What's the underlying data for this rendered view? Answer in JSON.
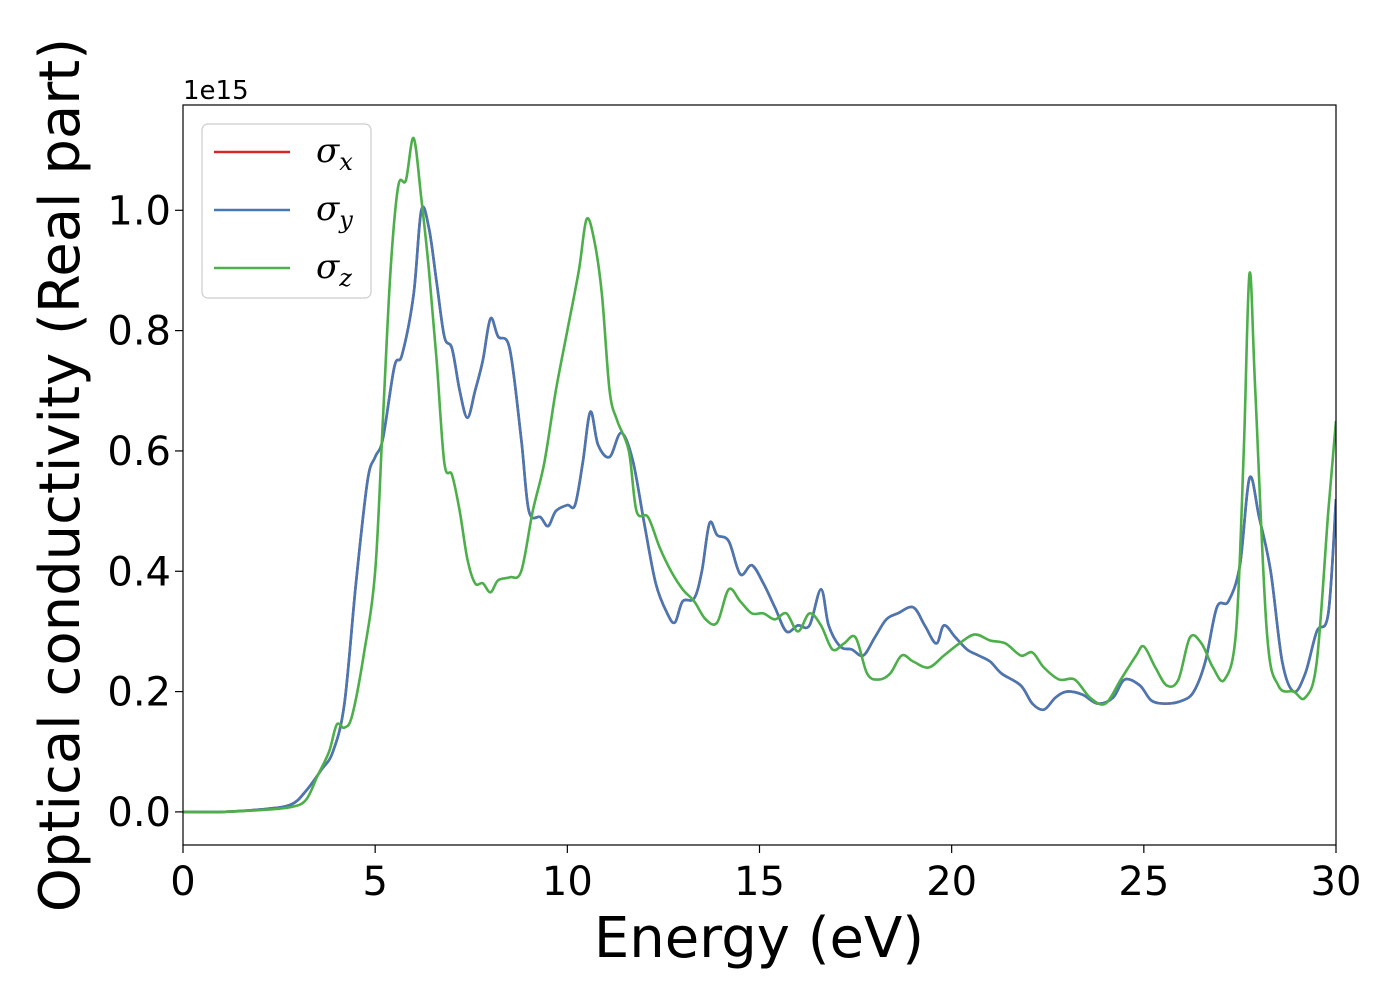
{
  "chart_data": {
    "type": "line",
    "xlabel": "Energy (eV)",
    "ylabel": "Optical conductivity (Real part)",
    "y_offset_label": "1e15",
    "xlim": [
      0,
      30
    ],
    "ylim": [
      -0.055,
      1.175
    ],
    "x_ticks": [
      0,
      5,
      10,
      15,
      20,
      25,
      30
    ],
    "x_tick_labels": [
      "0",
      "5",
      "10",
      "15",
      "20",
      "25",
      "30"
    ],
    "y_ticks": [
      0.0,
      0.2,
      0.4,
      0.6,
      0.8,
      1.0
    ],
    "y_tick_labels": [
      "0.0",
      "0.2",
      "0.4",
      "0.6",
      "0.8",
      "1.0"
    ],
    "grid": false,
    "legend_position": "upper-left",
    "series": [
      {
        "name": "σx",
        "label_base": "σ",
        "label_sub": "x",
        "color": "#d62728",
        "points": [
          [
            0,
            0
          ],
          [
            1,
            0
          ],
          [
            2,
            0.004
          ],
          [
            2.8,
            0.012
          ],
          [
            3.2,
            0.035
          ],
          [
            3.6,
            0.07
          ],
          [
            3.9,
            0.1
          ],
          [
            4.2,
            0.18
          ],
          [
            4.5,
            0.38
          ],
          [
            4.8,
            0.55
          ],
          [
            5.0,
            0.59
          ],
          [
            5.2,
            0.62
          ],
          [
            5.5,
            0.74
          ],
          [
            5.7,
            0.76
          ],
          [
            6.0,
            0.86
          ],
          [
            6.2,
            1.0
          ],
          [
            6.4,
            0.97
          ],
          [
            6.6,
            0.88
          ],
          [
            6.8,
            0.79
          ],
          [
            7.0,
            0.77
          ],
          [
            7.2,
            0.7
          ],
          [
            7.4,
            0.655
          ],
          [
            7.6,
            0.7
          ],
          [
            7.8,
            0.75
          ],
          [
            8.0,
            0.82
          ],
          [
            8.2,
            0.79
          ],
          [
            8.5,
            0.77
          ],
          [
            8.8,
            0.62
          ],
          [
            9.0,
            0.5
          ],
          [
            9.3,
            0.49
          ],
          [
            9.5,
            0.475
          ],
          [
            9.7,
            0.5
          ],
          [
            10.0,
            0.51
          ],
          [
            10.2,
            0.51
          ],
          [
            10.4,
            0.58
          ],
          [
            10.6,
            0.665
          ],
          [
            10.8,
            0.61
          ],
          [
            11.1,
            0.59
          ],
          [
            11.4,
            0.63
          ],
          [
            11.7,
            0.585
          ],
          [
            12.0,
            0.48
          ],
          [
            12.3,
            0.38
          ],
          [
            12.6,
            0.33
          ],
          [
            12.8,
            0.315
          ],
          [
            13.0,
            0.35
          ],
          [
            13.3,
            0.355
          ],
          [
            13.5,
            0.4
          ],
          [
            13.7,
            0.48
          ],
          [
            13.9,
            0.46
          ],
          [
            14.2,
            0.45
          ],
          [
            14.5,
            0.395
          ],
          [
            14.8,
            0.41
          ],
          [
            15.1,
            0.38
          ],
          [
            15.4,
            0.34
          ],
          [
            15.7,
            0.3
          ],
          [
            16.0,
            0.31
          ],
          [
            16.3,
            0.31
          ],
          [
            16.6,
            0.37
          ],
          [
            16.8,
            0.31
          ],
          [
            17.1,
            0.275
          ],
          [
            17.4,
            0.27
          ],
          [
            17.7,
            0.26
          ],
          [
            18.0,
            0.29
          ],
          [
            18.3,
            0.32
          ],
          [
            18.6,
            0.33
          ],
          [
            19.0,
            0.34
          ],
          [
            19.3,
            0.31
          ],
          [
            19.6,
            0.28
          ],
          [
            19.8,
            0.31
          ],
          [
            20.1,
            0.29
          ],
          [
            20.4,
            0.27
          ],
          [
            20.7,
            0.26
          ],
          [
            21.0,
            0.25
          ],
          [
            21.3,
            0.23
          ],
          [
            21.8,
            0.21
          ],
          [
            22.1,
            0.18
          ],
          [
            22.4,
            0.17
          ],
          [
            22.7,
            0.19
          ],
          [
            23.0,
            0.2
          ],
          [
            23.4,
            0.195
          ],
          [
            23.8,
            0.18
          ],
          [
            24.2,
            0.19
          ],
          [
            24.5,
            0.22
          ],
          [
            24.9,
            0.21
          ],
          [
            25.2,
            0.185
          ],
          [
            25.6,
            0.18
          ],
          [
            26.0,
            0.185
          ],
          [
            26.3,
            0.2
          ],
          [
            26.6,
            0.25
          ],
          [
            26.9,
            0.34
          ],
          [
            27.2,
            0.35
          ],
          [
            27.5,
            0.41
          ],
          [
            27.75,
            0.555
          ],
          [
            28.0,
            0.49
          ],
          [
            28.3,
            0.4
          ],
          [
            28.6,
            0.25
          ],
          [
            28.9,
            0.2
          ],
          [
            29.2,
            0.23
          ],
          [
            29.5,
            0.3
          ],
          [
            29.8,
            0.33
          ],
          [
            30.0,
            0.52
          ]
        ]
      },
      {
        "name": "σy",
        "label_base": "σ",
        "label_sub": "y",
        "color": "#4878b4",
        "points": [
          [
            0,
            0
          ],
          [
            1,
            0
          ],
          [
            2,
            0.004
          ],
          [
            2.8,
            0.012
          ],
          [
            3.2,
            0.035
          ],
          [
            3.6,
            0.07
          ],
          [
            3.9,
            0.1
          ],
          [
            4.2,
            0.18
          ],
          [
            4.5,
            0.38
          ],
          [
            4.8,
            0.55
          ],
          [
            5.0,
            0.59
          ],
          [
            5.2,
            0.62
          ],
          [
            5.5,
            0.74
          ],
          [
            5.7,
            0.76
          ],
          [
            6.0,
            0.86
          ],
          [
            6.2,
            1.0
          ],
          [
            6.4,
            0.97
          ],
          [
            6.6,
            0.88
          ],
          [
            6.8,
            0.79
          ],
          [
            7.0,
            0.77
          ],
          [
            7.2,
            0.7
          ],
          [
            7.4,
            0.655
          ],
          [
            7.6,
            0.7
          ],
          [
            7.8,
            0.75
          ],
          [
            8.0,
            0.82
          ],
          [
            8.2,
            0.79
          ],
          [
            8.5,
            0.77
          ],
          [
            8.8,
            0.62
          ],
          [
            9.0,
            0.5
          ],
          [
            9.3,
            0.49
          ],
          [
            9.5,
            0.475
          ],
          [
            9.7,
            0.5
          ],
          [
            10.0,
            0.51
          ],
          [
            10.2,
            0.51
          ],
          [
            10.4,
            0.58
          ],
          [
            10.6,
            0.665
          ],
          [
            10.8,
            0.61
          ],
          [
            11.1,
            0.59
          ],
          [
            11.4,
            0.63
          ],
          [
            11.7,
            0.585
          ],
          [
            12.0,
            0.48
          ],
          [
            12.3,
            0.38
          ],
          [
            12.6,
            0.33
          ],
          [
            12.8,
            0.315
          ],
          [
            13.0,
            0.35
          ],
          [
            13.3,
            0.355
          ],
          [
            13.5,
            0.4
          ],
          [
            13.7,
            0.48
          ],
          [
            13.9,
            0.46
          ],
          [
            14.2,
            0.45
          ],
          [
            14.5,
            0.395
          ],
          [
            14.8,
            0.41
          ],
          [
            15.1,
            0.38
          ],
          [
            15.4,
            0.34
          ],
          [
            15.7,
            0.3
          ],
          [
            16.0,
            0.31
          ],
          [
            16.3,
            0.31
          ],
          [
            16.6,
            0.37
          ],
          [
            16.8,
            0.31
          ],
          [
            17.1,
            0.275
          ],
          [
            17.4,
            0.27
          ],
          [
            17.7,
            0.26
          ],
          [
            18.0,
            0.29
          ],
          [
            18.3,
            0.32
          ],
          [
            18.6,
            0.33
          ],
          [
            19.0,
            0.34
          ],
          [
            19.3,
            0.31
          ],
          [
            19.6,
            0.28
          ],
          [
            19.8,
            0.31
          ],
          [
            20.1,
            0.29
          ],
          [
            20.4,
            0.27
          ],
          [
            20.7,
            0.26
          ],
          [
            21.0,
            0.25
          ],
          [
            21.3,
            0.23
          ],
          [
            21.8,
            0.21
          ],
          [
            22.1,
            0.18
          ],
          [
            22.4,
            0.17
          ],
          [
            22.7,
            0.19
          ],
          [
            23.0,
            0.2
          ],
          [
            23.4,
            0.195
          ],
          [
            23.8,
            0.18
          ],
          [
            24.2,
            0.19
          ],
          [
            24.5,
            0.22
          ],
          [
            24.9,
            0.21
          ],
          [
            25.2,
            0.185
          ],
          [
            25.6,
            0.18
          ],
          [
            26.0,
            0.185
          ],
          [
            26.3,
            0.2
          ],
          [
            26.6,
            0.25
          ],
          [
            26.9,
            0.34
          ],
          [
            27.2,
            0.35
          ],
          [
            27.5,
            0.41
          ],
          [
            27.75,
            0.555
          ],
          [
            28.0,
            0.49
          ],
          [
            28.3,
            0.4
          ],
          [
            28.6,
            0.25
          ],
          [
            28.9,
            0.2
          ],
          [
            29.2,
            0.23
          ],
          [
            29.5,
            0.3
          ],
          [
            29.8,
            0.33
          ],
          [
            30.0,
            0.52
          ]
        ]
      },
      {
        "name": "σz",
        "label_base": "σ",
        "label_sub": "z",
        "color": "#4daf4a",
        "points": [
          [
            0,
            0
          ],
          [
            1,
            0
          ],
          [
            2,
            0.003
          ],
          [
            2.8,
            0.008
          ],
          [
            3.2,
            0.02
          ],
          [
            3.5,
            0.06
          ],
          [
            3.8,
            0.1
          ],
          [
            4.0,
            0.145
          ],
          [
            4.2,
            0.14
          ],
          [
            4.4,
            0.16
          ],
          [
            4.7,
            0.26
          ],
          [
            5.0,
            0.4
          ],
          [
            5.2,
            0.65
          ],
          [
            5.4,
            0.9
          ],
          [
            5.6,
            1.04
          ],
          [
            5.8,
            1.05
          ],
          [
            6.0,
            1.12
          ],
          [
            6.2,
            1.02
          ],
          [
            6.4,
            0.9
          ],
          [
            6.6,
            0.75
          ],
          [
            6.8,
            0.58
          ],
          [
            7.0,
            0.56
          ],
          [
            7.2,
            0.5
          ],
          [
            7.4,
            0.42
          ],
          [
            7.6,
            0.38
          ],
          [
            7.8,
            0.38
          ],
          [
            8.0,
            0.365
          ],
          [
            8.2,
            0.385
          ],
          [
            8.5,
            0.39
          ],
          [
            8.8,
            0.4
          ],
          [
            9.1,
            0.5
          ],
          [
            9.4,
            0.58
          ],
          [
            9.7,
            0.7
          ],
          [
            10.0,
            0.8
          ],
          [
            10.3,
            0.9
          ],
          [
            10.5,
            0.985
          ],
          [
            10.7,
            0.95
          ],
          [
            10.9,
            0.86
          ],
          [
            11.1,
            0.7
          ],
          [
            11.3,
            0.65
          ],
          [
            11.6,
            0.6
          ],
          [
            11.8,
            0.5
          ],
          [
            12.1,
            0.49
          ],
          [
            12.4,
            0.44
          ],
          [
            12.7,
            0.4
          ],
          [
            13.0,
            0.37
          ],
          [
            13.3,
            0.35
          ],
          [
            13.6,
            0.32
          ],
          [
            13.9,
            0.315
          ],
          [
            14.2,
            0.37
          ],
          [
            14.5,
            0.35
          ],
          [
            14.8,
            0.33
          ],
          [
            15.1,
            0.33
          ],
          [
            15.4,
            0.32
          ],
          [
            15.7,
            0.33
          ],
          [
            16.0,
            0.3
          ],
          [
            16.3,
            0.33
          ],
          [
            16.6,
            0.31
          ],
          [
            16.9,
            0.27
          ],
          [
            17.2,
            0.28
          ],
          [
            17.5,
            0.29
          ],
          [
            17.8,
            0.23
          ],
          [
            18.1,
            0.22
          ],
          [
            18.4,
            0.23
          ],
          [
            18.7,
            0.26
          ],
          [
            19.0,
            0.25
          ],
          [
            19.4,
            0.24
          ],
          [
            19.8,
            0.26
          ],
          [
            20.2,
            0.28
          ],
          [
            20.6,
            0.295
          ],
          [
            21.0,
            0.285
          ],
          [
            21.4,
            0.28
          ],
          [
            21.8,
            0.26
          ],
          [
            22.1,
            0.265
          ],
          [
            22.4,
            0.24
          ],
          [
            22.8,
            0.22
          ],
          [
            23.2,
            0.22
          ],
          [
            23.6,
            0.19
          ],
          [
            24.0,
            0.18
          ],
          [
            24.4,
            0.22
          ],
          [
            24.8,
            0.26
          ],
          [
            25.0,
            0.275
          ],
          [
            25.3,
            0.24
          ],
          [
            25.6,
            0.21
          ],
          [
            25.9,
            0.22
          ],
          [
            26.2,
            0.29
          ],
          [
            26.5,
            0.28
          ],
          [
            26.8,
            0.24
          ],
          [
            27.1,
            0.22
          ],
          [
            27.4,
            0.3
          ],
          [
            27.6,
            0.6
          ],
          [
            27.75,
            0.895
          ],
          [
            27.9,
            0.7
          ],
          [
            28.2,
            0.3
          ],
          [
            28.5,
            0.21
          ],
          [
            28.9,
            0.2
          ],
          [
            29.2,
            0.19
          ],
          [
            29.5,
            0.25
          ],
          [
            29.8,
            0.5
          ],
          [
            30.0,
            0.65
          ]
        ]
      }
    ]
  }
}
